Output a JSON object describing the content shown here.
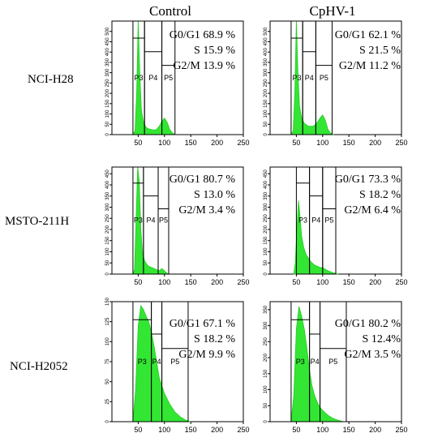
{
  "columns": [
    "Control",
    "CpHV-1"
  ],
  "rows": [
    {
      "label": "NCI-H28",
      "panels": [
        {
          "stats": [
            "G0/G1 68.9 %",
            "S 15.9 %",
            "G2/M  13.9 %"
          ],
          "gates": [
            "P3",
            "P4",
            "P5"
          ]
        },
        {
          "stats": [
            "G0/G1 62.1 %",
            "S  21.5 %",
            "G2/M  11.2 %"
          ],
          "gates": [
            "P3",
            "P4",
            "P5"
          ]
        }
      ]
    },
    {
      "label": "MSTO-211H",
      "panels": [
        {
          "stats": [
            "G0/G1 80.7 %",
            "S 13.0 %",
            "G2/M 3.4 %"
          ],
          "gates": [
            "P3",
            "P4",
            "P5"
          ]
        },
        {
          "stats": [
            "G0/G1 73.3 %",
            "S   18.2 %",
            "G2/M 6.4 %"
          ],
          "gates": [
            "P3",
            "P4",
            "P5"
          ]
        }
      ]
    },
    {
      "label": "NCI-H2052",
      "panels": [
        {
          "stats": [
            "G0/G1 67.1 %",
            "S 18.2 %",
            "G2/M 9.9 %"
          ],
          "gates": [
            "P3",
            "P4",
            "P5"
          ]
        },
        {
          "stats": [
            "G0/G1 80.2 %",
            "S 12.4%",
            "G2/M 3.5 %"
          ],
          "gates": [
            "P3",
            "P4",
            "P5"
          ]
        }
      ]
    }
  ],
  "colors": {
    "histogram": "#33e633",
    "axis": "#000000",
    "grid_text": "#000000"
  },
  "chart_data": [
    {
      "type": "area",
      "xlim": [
        0,
        250
      ],
      "ylim": [
        0,
        550
      ],
      "x_ticks": [
        50,
        100,
        150,
        200,
        250
      ],
      "y_ticks": [
        0,
        50,
        100,
        150,
        200,
        250,
        300,
        350,
        400,
        450,
        500
      ],
      "gate_bounds": [
        [
          40,
          62,
          "P3"
        ],
        [
          62,
          95,
          "P4"
        ],
        [
          95,
          120,
          "P5"
        ]
      ],
      "series": [
        {
          "x": [
            40,
            44,
            47,
            50,
            53,
            56,
            60,
            65,
            70,
            75,
            80,
            85,
            90,
            95,
            100,
            105,
            110,
            115,
            120
          ],
          "y": [
            0,
            20,
            200,
            560,
            300,
            120,
            60,
            35,
            28,
            25,
            22,
            25,
            40,
            65,
            80,
            60,
            25,
            8,
            0
          ]
        }
      ]
    },
    {
      "type": "area",
      "xlim": [
        0,
        250
      ],
      "ylim": [
        0,
        550
      ],
      "x_ticks": [
        50,
        100,
        150,
        200,
        250
      ],
      "y_ticks": [
        0,
        50,
        100,
        150,
        200,
        250,
        300,
        350,
        400,
        450,
        500
      ],
      "gate_bounds": [
        [
          40,
          62,
          "P3"
        ],
        [
          62,
          87,
          "P4"
        ],
        [
          87,
          118,
          "P5"
        ]
      ],
      "series": [
        {
          "x": [
            40,
            44,
            47,
            50,
            53,
            56,
            60,
            65,
            70,
            75,
            80,
            85,
            90,
            95,
            100,
            105,
            110,
            115,
            120
          ],
          "y": [
            0,
            20,
            200,
            560,
            300,
            140,
            80,
            55,
            45,
            40,
            40,
            45,
            60,
            80,
            95,
            70,
            25,
            8,
            0
          ]
        }
      ]
    },
    {
      "type": "area",
      "xlim": [
        0,
        250
      ],
      "ylim": [
        0,
        480
      ],
      "x_ticks": [
        50,
        100,
        150,
        200,
        250
      ],
      "y_ticks": [
        0,
        50,
        100,
        150,
        200,
        250,
        300,
        350,
        400,
        450
      ],
      "gate_bounds": [
        [
          40,
          60,
          "P3"
        ],
        [
          60,
          88,
          "P4"
        ],
        [
          88,
          108,
          "P5"
        ]
      ],
      "series": [
        {
          "x": [
            40,
            43,
            46,
            49,
            52,
            55,
            58,
            62,
            66,
            70,
            75,
            80,
            85,
            90,
            95,
            100,
            104,
            108
          ],
          "y": [
            0,
            20,
            250,
            480,
            420,
            200,
            100,
            60,
            45,
            35,
            30,
            25,
            20,
            15,
            25,
            15,
            5,
            0
          ]
        }
      ]
    },
    {
      "type": "area",
      "xlim": [
        0,
        250
      ],
      "ylim": [
        0,
        480
      ],
      "x_ticks": [
        50,
        100,
        150,
        200,
        250
      ],
      "y_ticks": [
        0,
        50,
        100,
        150,
        200,
        250,
        300,
        350,
        400,
        450
      ],
      "gate_bounds": [
        [
          50,
          75,
          "P3"
        ],
        [
          75,
          100,
          "P4"
        ],
        [
          100,
          125,
          "P5"
        ]
      ],
      "series": [
        {
          "x": [
            45,
            48,
            51,
            54,
            57,
            60,
            64,
            68,
            72,
            76,
            80,
            85,
            90,
            95,
            100,
            105,
            110,
            115,
            120,
            125,
            130
          ],
          "y": [
            0,
            50,
            200,
            330,
            260,
            170,
            120,
            90,
            75,
            60,
            50,
            40,
            35,
            30,
            28,
            22,
            15,
            10,
            6,
            3,
            0
          ]
        }
      ]
    },
    {
      "type": "area",
      "xlim": [
        0,
        250
      ],
      "ylim": [
        0,
        150
      ],
      "x_ticks": [
        50,
        100,
        150,
        200,
        250
      ],
      "y_ticks": [
        0,
        25,
        50,
        75,
        100,
        125,
        150
      ],
      "gate_bounds": [
        [
          40,
          75,
          "P3"
        ],
        [
          75,
          95,
          "P4"
        ],
        [
          95,
          145,
          "P5"
        ]
      ],
      "series": [
        {
          "x": [
            40,
            45,
            50,
            55,
            60,
            65,
            70,
            75,
            80,
            85,
            90,
            95,
            100,
            110,
            120,
            130,
            140,
            150
          ],
          "y": [
            0,
            40,
            120,
            145,
            140,
            132,
            125,
            112,
            95,
            75,
            55,
            45,
            35,
            22,
            12,
            6,
            2,
            0
          ]
        }
      ]
    },
    {
      "type": "area",
      "xlim": [
        0,
        250
      ],
      "ylim": [
        0,
        375
      ],
      "x_ticks": [
        50,
        100,
        150,
        200,
        250
      ],
      "y_ticks": [
        0,
        50,
        100,
        150,
        200,
        250,
        300,
        350
      ],
      "gate_bounds": [
        [
          40,
          75,
          "P3"
        ],
        [
          75,
          95,
          "P4"
        ],
        [
          95,
          145,
          "P5"
        ]
      ],
      "series": [
        {
          "x": [
            40,
            45,
            50,
            55,
            60,
            65,
            70,
            75,
            80,
            85,
            90,
            95,
            100,
            110,
            120,
            130,
            140
          ],
          "y": [
            0,
            80,
            290,
            360,
            330,
            290,
            230,
            160,
            110,
            80,
            60,
            45,
            35,
            20,
            10,
            4,
            0
          ]
        }
      ]
    }
  ]
}
